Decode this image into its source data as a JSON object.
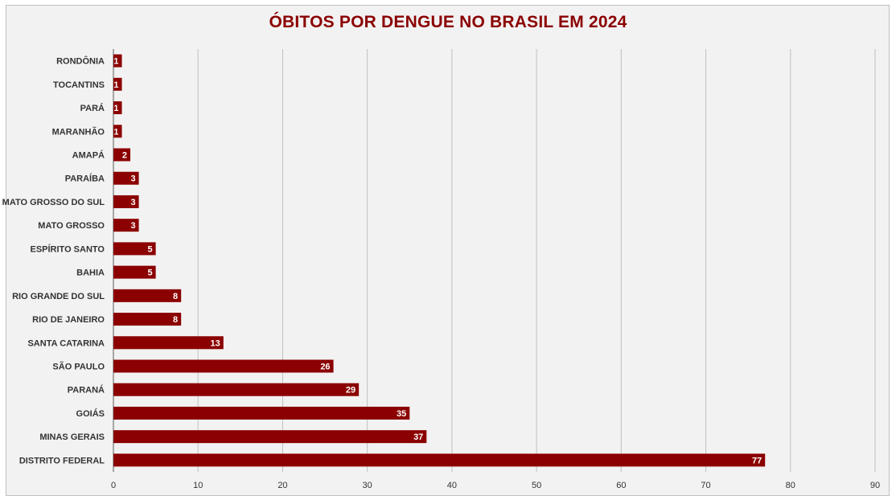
{
  "chart_data": {
    "type": "bar",
    "orientation": "horizontal",
    "title": "ÓBITOS POR DENGUE NO BRASIL EM 2024",
    "categories": [
      "RONDÔNIA",
      "TOCANTINS",
      "PARÁ",
      "MARANHÃO",
      "AMAPÁ",
      "PARAÍBA",
      "MATO GROSSO DO SUL",
      "MATO GROSSO",
      "ESPÍRITO SANTO",
      "BAHIA",
      "RIO GRANDE DO SUL",
      "RIO DE JANEIRO",
      "SANTA CATARINA",
      "SÃO PAULO",
      "PARANÁ",
      "GOIÁS",
      "MINAS GERAIS",
      "DISTRITO FEDERAL"
    ],
    "values": [
      1,
      1,
      1,
      1,
      2,
      3,
      3,
      3,
      5,
      5,
      8,
      8,
      13,
      26,
      29,
      35,
      37,
      77
    ],
    "xlim": [
      0,
      90
    ],
    "xticks": [
      0,
      10,
      20,
      30,
      40,
      50,
      60,
      70,
      80,
      90
    ],
    "grid": "vertical",
    "legend": "none",
    "colors": {
      "bar": "#8b0000",
      "title": "#8b0000",
      "background": "#f2f2f2",
      "grid": "#bfbfbf"
    }
  }
}
